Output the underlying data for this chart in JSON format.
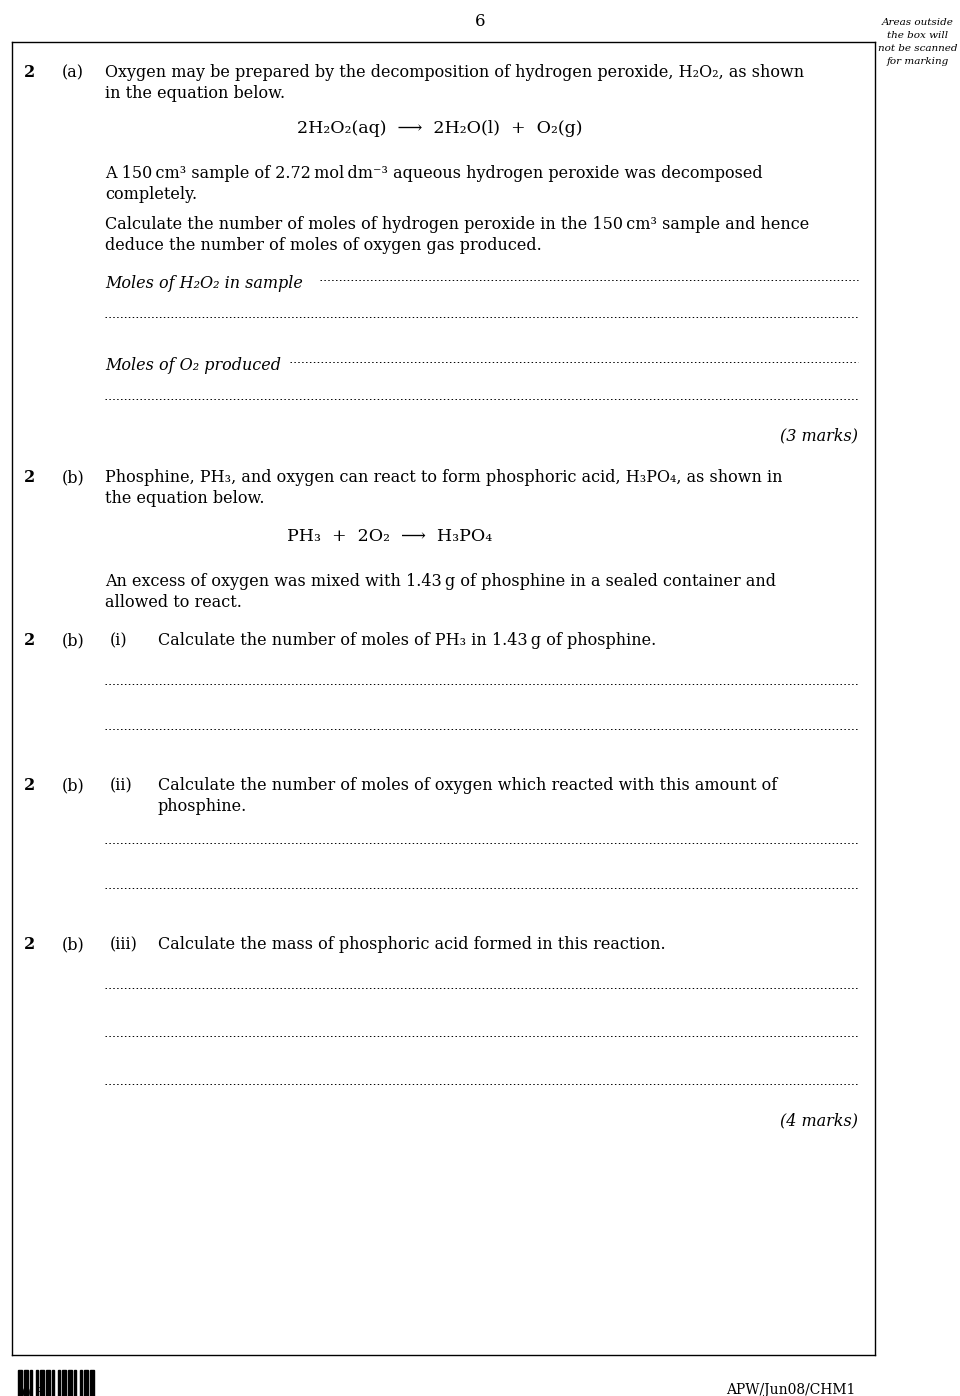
{
  "page_number": "6",
  "sidebar_text": [
    "Areas outside",
    "the box will",
    "not be scanned",
    "for marking"
  ],
  "bg_color": "#ffffff",
  "text_color": "#000000",
  "line_color": "#000000",
  "border_color": "#000000",
  "footer_barcode": "0 6",
  "footer_ref": "APW/Jun08/CHM1"
}
